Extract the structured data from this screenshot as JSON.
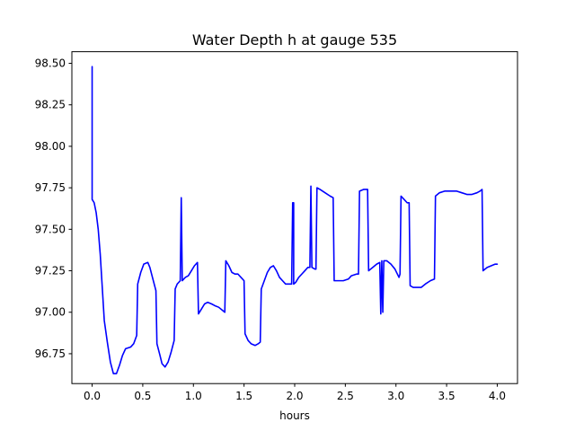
{
  "chart_data": {
    "type": "line",
    "title": "Water Depth h at gauge 535",
    "xlabel": "hours",
    "ylabel": "",
    "xlim": [
      -0.2,
      4.2
    ],
    "ylim": [
      96.57,
      98.57
    ],
    "xticks": [
      0.0,
      0.5,
      1.0,
      1.5,
      2.0,
      2.5,
      3.0,
      3.5,
      4.0
    ],
    "xtick_labels": [
      "0.0",
      "0.5",
      "1.0",
      "1.5",
      "2.0",
      "2.5",
      "3.0",
      "3.5",
      "4.0"
    ],
    "yticks": [
      96.75,
      97.0,
      97.25,
      97.5,
      97.75,
      98.0,
      98.25,
      98.5
    ],
    "ytick_labels": [
      "96.75",
      "97.00",
      "97.25",
      "97.50",
      "97.75",
      "98.00",
      "98.25",
      "98.50"
    ],
    "grid": false,
    "series": [
      {
        "color": "#0000ff",
        "points": [
          [
            0.0,
            98.48
          ],
          [
            0.0,
            97.68
          ],
          [
            0.02,
            97.66
          ],
          [
            0.04,
            97.6
          ],
          [
            0.06,
            97.5
          ],
          [
            0.08,
            97.35
          ],
          [
            0.1,
            97.15
          ],
          [
            0.12,
            96.95
          ],
          [
            0.15,
            96.82
          ],
          [
            0.18,
            96.7
          ],
          [
            0.21,
            96.63
          ],
          [
            0.24,
            96.63
          ],
          [
            0.27,
            96.68
          ],
          [
            0.3,
            96.74
          ],
          [
            0.33,
            96.78
          ],
          [
            0.38,
            96.79
          ],
          [
            0.41,
            96.81
          ],
          [
            0.44,
            96.86
          ],
          [
            0.45,
            97.17
          ],
          [
            0.48,
            97.24
          ],
          [
            0.51,
            97.29
          ],
          [
            0.55,
            97.3
          ],
          [
            0.57,
            97.27
          ],
          [
            0.6,
            97.2
          ],
          [
            0.63,
            97.13
          ],
          [
            0.64,
            96.81
          ],
          [
            0.67,
            96.74
          ],
          [
            0.69,
            96.69
          ],
          [
            0.72,
            96.67
          ],
          [
            0.75,
            96.7
          ],
          [
            0.78,
            96.76
          ],
          [
            0.81,
            96.83
          ],
          [
            0.82,
            97.14
          ],
          [
            0.84,
            97.17
          ],
          [
            0.87,
            97.19
          ],
          [
            0.88,
            97.69
          ],
          [
            0.89,
            97.19
          ],
          [
            0.92,
            97.21
          ],
          [
            0.95,
            97.22
          ],
          [
            0.98,
            97.25
          ],
          [
            1.01,
            97.28
          ],
          [
            1.04,
            97.3
          ],
          [
            1.05,
            96.99
          ],
          [
            1.08,
            97.02
          ],
          [
            1.11,
            97.05
          ],
          [
            1.14,
            97.06
          ],
          [
            1.18,
            97.05
          ],
          [
            1.21,
            97.04
          ],
          [
            1.25,
            97.03
          ],
          [
            1.29,
            97.01
          ],
          [
            1.31,
            97.0
          ],
          [
            1.32,
            97.31
          ],
          [
            1.35,
            97.28
          ],
          [
            1.38,
            97.24
          ],
          [
            1.41,
            97.23
          ],
          [
            1.44,
            97.23
          ],
          [
            1.47,
            97.21
          ],
          [
            1.5,
            97.19
          ],
          [
            1.51,
            96.87
          ],
          [
            1.54,
            96.83
          ],
          [
            1.57,
            96.81
          ],
          [
            1.61,
            96.8
          ],
          [
            1.64,
            96.81
          ],
          [
            1.66,
            96.82
          ],
          [
            1.67,
            97.14
          ],
          [
            1.7,
            97.19
          ],
          [
            1.73,
            97.24
          ],
          [
            1.76,
            97.27
          ],
          [
            1.79,
            97.28
          ],
          [
            1.82,
            97.25
          ],
          [
            1.85,
            97.21
          ],
          [
            1.88,
            97.19
          ],
          [
            1.91,
            97.17
          ],
          [
            1.94,
            97.17
          ],
          [
            1.97,
            97.17
          ],
          [
            1.98,
            97.66
          ],
          [
            1.99,
            97.66
          ],
          [
            1.99,
            97.17
          ],
          [
            2.01,
            97.18
          ],
          [
            2.04,
            97.21
          ],
          [
            2.07,
            97.23
          ],
          [
            2.1,
            97.25
          ],
          [
            2.13,
            97.27
          ],
          [
            2.15,
            97.27
          ],
          [
            2.16,
            97.76
          ],
          [
            2.17,
            97.27
          ],
          [
            2.2,
            97.26
          ],
          [
            2.21,
            97.26
          ],
          [
            2.22,
            97.75
          ],
          [
            2.25,
            97.74
          ],
          [
            2.3,
            97.72
          ],
          [
            2.35,
            97.7
          ],
          [
            2.38,
            97.69
          ],
          [
            2.39,
            97.19
          ],
          [
            2.43,
            97.19
          ],
          [
            2.48,
            97.19
          ],
          [
            2.53,
            97.2
          ],
          [
            2.56,
            97.22
          ],
          [
            2.61,
            97.23
          ],
          [
            2.63,
            97.23
          ],
          [
            2.64,
            97.73
          ],
          [
            2.68,
            97.74
          ],
          [
            2.72,
            97.74
          ],
          [
            2.73,
            97.25
          ],
          [
            2.77,
            97.27
          ],
          [
            2.81,
            97.29
          ],
          [
            2.84,
            97.3
          ],
          [
            2.85,
            96.99
          ],
          [
            2.86,
            97.31
          ],
          [
            2.87,
            97.0
          ],
          [
            2.88,
            97.31
          ],
          [
            2.91,
            97.31
          ],
          [
            2.95,
            97.29
          ],
          [
            2.99,
            97.26
          ],
          [
            3.03,
            97.21
          ],
          [
            3.04,
            97.23
          ],
          [
            3.05,
            97.7
          ],
          [
            3.08,
            97.68
          ],
          [
            3.11,
            97.66
          ],
          [
            3.13,
            97.66
          ],
          [
            3.14,
            97.16
          ],
          [
            3.17,
            97.15
          ],
          [
            3.22,
            97.15
          ],
          [
            3.25,
            97.15
          ],
          [
            3.29,
            97.17
          ],
          [
            3.34,
            97.19
          ],
          [
            3.38,
            97.2
          ],
          [
            3.39,
            97.7
          ],
          [
            3.43,
            97.72
          ],
          [
            3.48,
            97.73
          ],
          [
            3.55,
            97.73
          ],
          [
            3.6,
            97.73
          ],
          [
            3.65,
            97.72
          ],
          [
            3.7,
            97.71
          ],
          [
            3.75,
            97.71
          ],
          [
            3.8,
            97.72
          ],
          [
            3.83,
            97.73
          ],
          [
            3.85,
            97.74
          ],
          [
            3.86,
            97.25
          ],
          [
            3.9,
            97.27
          ],
          [
            3.94,
            97.28
          ],
          [
            3.98,
            97.29
          ],
          [
            4.0,
            97.29
          ]
        ]
      }
    ]
  }
}
